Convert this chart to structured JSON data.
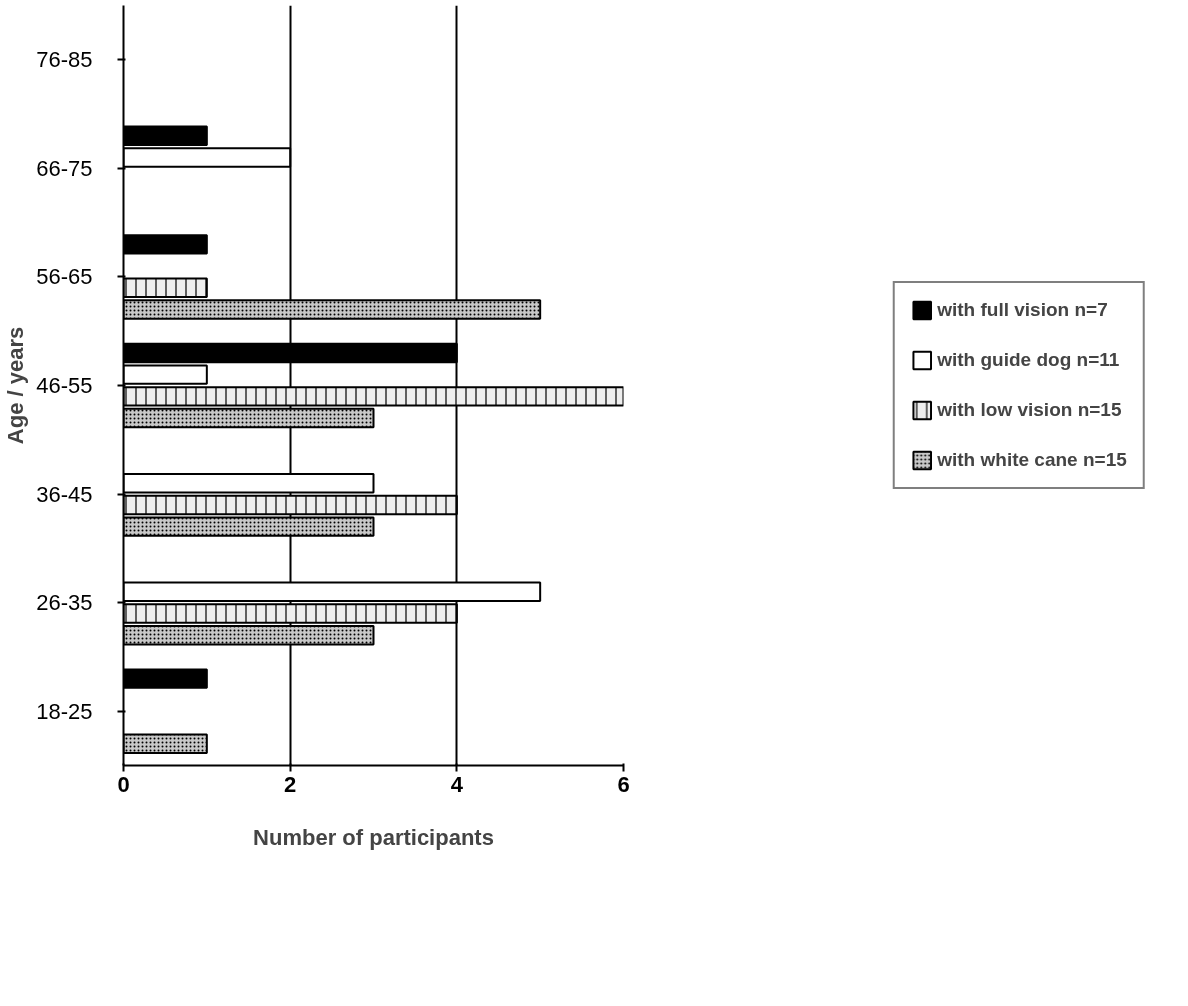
{
  "chart_data": {
    "type": "bar",
    "orientation": "horizontal",
    "xlabel": "Number of participants",
    "ylabel": "Age / years",
    "categories": [
      "76-85",
      "66-75",
      "56-65",
      "46-55",
      "36-45",
      "26-35",
      "18-25"
    ],
    "series": [
      {
        "name": "with full vision n=7",
        "color": "#000000",
        "values": [
          null,
          1,
          1,
          4,
          null,
          null,
          1
        ]
      },
      {
        "name": "with guide dog n=11",
        "color": "#ffffff",
        "values": [
          null,
          2,
          null,
          1,
          3,
          5,
          null
        ]
      },
      {
        "name": "with low vision n=15",
        "color": "#eeeeee",
        "values": [
          null,
          null,
          1,
          6,
          4,
          4,
          null
        ]
      },
      {
        "name": "with white cane n=15",
        "color": "#c8c8c8",
        "values": [
          null,
          null,
          5,
          3,
          3,
          3,
          1
        ]
      }
    ],
    "xlim": [
      0,
      6
    ],
    "xticks": [
      0,
      2,
      4,
      6
    ],
    "grid": "x",
    "legend": "right"
  }
}
